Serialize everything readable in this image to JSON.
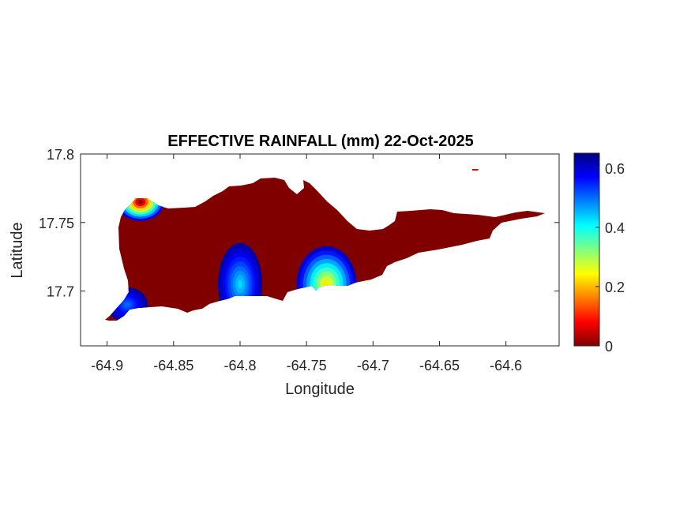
{
  "chart_data": {
    "type": "heatmap",
    "title": "EFFECTIVE RAINFALL (mm) 22-Oct-2025",
    "xlabel": "Longitude",
    "ylabel": "Latitude",
    "xlim": [
      -64.92,
      -64.56
    ],
    "ylim": [
      17.66,
      17.8
    ],
    "xticks": [
      -64.9,
      -64.85,
      -64.8,
      -64.75,
      -64.7,
      -64.65,
      -64.6
    ],
    "xtick_labels": [
      "-64.9",
      "-64.85",
      "-64.8",
      "-64.75",
      "-64.7",
      "-64.65",
      "-64.6"
    ],
    "yticks": [
      17.7,
      17.75,
      17.8
    ],
    "ytick_labels": [
      "17.7",
      "17.75",
      "17.8"
    ],
    "colorbar": {
      "colormap": "jet",
      "clim": [
        0,
        0.65
      ],
      "ticks": [
        0,
        0.2,
        0.4,
        0.6
      ],
      "tick_labels": [
        "0",
        "0.2",
        "0.4",
        "0.6"
      ]
    },
    "background_value": 0,
    "hotspots": [
      {
        "lon": -64.875,
        "lat": 17.765,
        "value": 0.65,
        "description": "north-west tip"
      },
      {
        "lon": -64.735,
        "lat": 17.705,
        "value": 0.42,
        "description": "south-central coast"
      },
      {
        "lon": -64.8,
        "lat": 17.705,
        "value": 0.22,
        "description": "south-west coast"
      },
      {
        "lon": -64.885,
        "lat": 17.69,
        "value": 0.15,
        "description": "south-west point"
      }
    ],
    "grid": false
  }
}
